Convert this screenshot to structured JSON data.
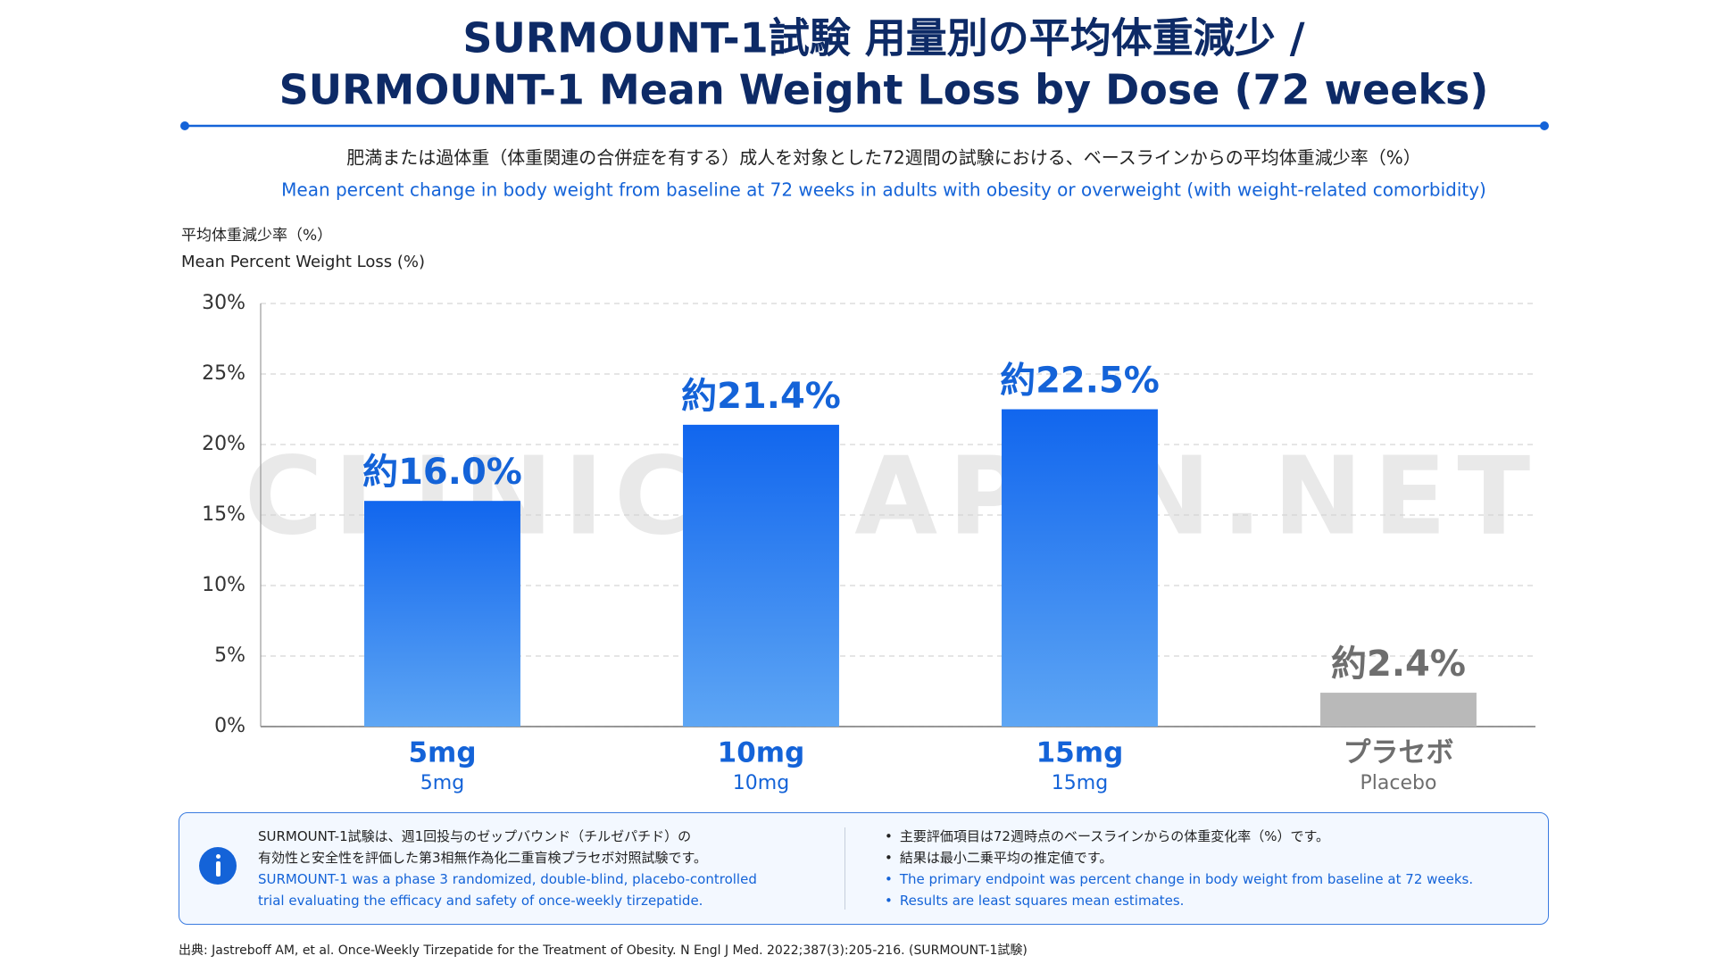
{
  "chart_data": {
    "type": "bar",
    "title_lines": [
      "SURMOUNT-1試験 用量別の平均体重減少 /",
      "SURMOUNT-1 Mean Weight Loss by Dose (72 weeks)"
    ],
    "subtitle_ja": "肥満または過体重（体重関連の合併症を有する）成人を対象とした72週間の試験における、ベースラインからの平均体重減少率（%）",
    "subtitle_en": "Mean percent change in body weight from baseline at 72 weeks in adults with obesity or overweight (with weight-related comorbidity)",
    "y_label_ja": "平均体重減少率（%）",
    "y_label_en": "Mean Percent Weight Loss (%)",
    "watermark": "CLINIC+JAPAN.NET",
    "categories": [
      "5mg",
      "10mg",
      "15mg",
      "プラセボ"
    ],
    "category_sublabels": [
      "5mg",
      "10mg",
      "15mg",
      "Placebo"
    ],
    "values": [
      16.0,
      21.4,
      22.5,
      2.4
    ],
    "value_labels": [
      "約16.0%",
      "約21.4%",
      "約22.5%",
      "約2.4%"
    ],
    "colors": [
      "#1166ee",
      "#1166ee",
      "#1166ee",
      "#b9b9b9"
    ],
    "label_colors": [
      "#1463d8",
      "#1463d8",
      "#1463d8",
      "#6e6e6e"
    ],
    "ylim": [
      0,
      30
    ],
    "yticks": [
      {
        "value": 0,
        "label": "0%"
      },
      {
        "value": 5,
        "label": "5%"
      },
      {
        "value": 10,
        "label": "10%"
      },
      {
        "value": 15,
        "label": "15%"
      },
      {
        "value": 20,
        "label": "20%"
      },
      {
        "value": 25,
        "label": "25%"
      },
      {
        "value": 30,
        "label": "30%"
      }
    ],
    "grid": true
  },
  "info_box": {
    "left_ja": [
      "SURMOUNT-1試験は、週1回投与のゼップバウンド（チルゼパチド）の",
      "有効性と安全性を評価した第3相無作為化二重盲検プラセボ対照試験です。"
    ],
    "left_en": [
      "SURMOUNT-1 was a phase 3 randomized, double-blind, placebo-controlled",
      "trial evaluating the efficacy and safety of once-weekly tirzepatide."
    ],
    "right_ja": [
      "主要評価項目は72週時点のベースラインからの体重変化率（%）です。",
      "結果は最小二乗平均の推定値です。"
    ],
    "right_en": [
      "The primary endpoint was percent change in body weight from baseline at 72 weeks.",
      "Results are least squares mean estimates."
    ]
  },
  "source": "出典: Jastreboff AM, et al. Once-Weekly Tirzepatide for the Treatment of Obesity. N Engl J Med. 2022;387(3):205-216. (SURMOUNT-1試験)"
}
